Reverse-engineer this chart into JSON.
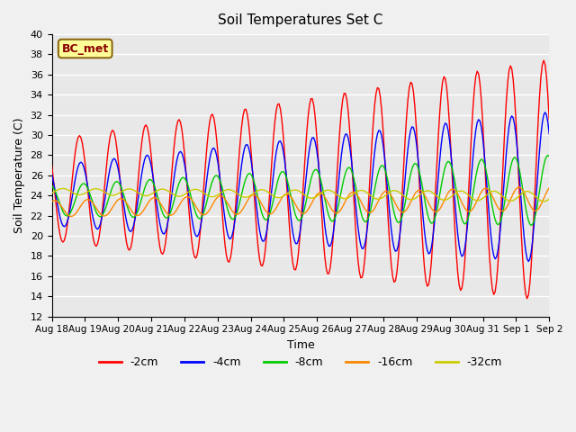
{
  "title": "Soil Temperatures Set C",
  "xlabel": "Time",
  "ylabel": "Soil Temperature (C)",
  "ylim": [
    12,
    40
  ],
  "yticks": [
    12,
    14,
    16,
    18,
    20,
    22,
    24,
    26,
    28,
    30,
    32,
    34,
    36,
    38,
    40
  ],
  "xtick_labels": [
    "Aug 18",
    "Aug 19",
    "Aug 20",
    "Aug 21",
    "Aug 22",
    "Aug 23",
    "Aug 24",
    "Aug 25",
    "Aug 26",
    "Aug 27",
    "Aug 28",
    "Aug 29",
    "Aug 30",
    "Aug 31",
    "Sep 1",
    "Sep 2"
  ],
  "annotation_text": "BC_met",
  "annotation_color": "#8B0000",
  "annotation_bg": "#FFFF99",
  "series": [
    {
      "label": "-2cm",
      "color": "#FF0000"
    },
    {
      "label": "-4cm",
      "color": "#0000FF"
    },
    {
      "label": "-8cm",
      "color": "#00CC00"
    },
    {
      "label": "-16cm",
      "color": "#FF8800"
    },
    {
      "label": "-32cm",
      "color": "#CCCC00"
    }
  ],
  "bg_color": "#E8E8E8",
  "grid_color": "#FFFFFF",
  "fig_bg_color": "#F0F0F0",
  "n_days": 15,
  "n_points_per_day": 24
}
